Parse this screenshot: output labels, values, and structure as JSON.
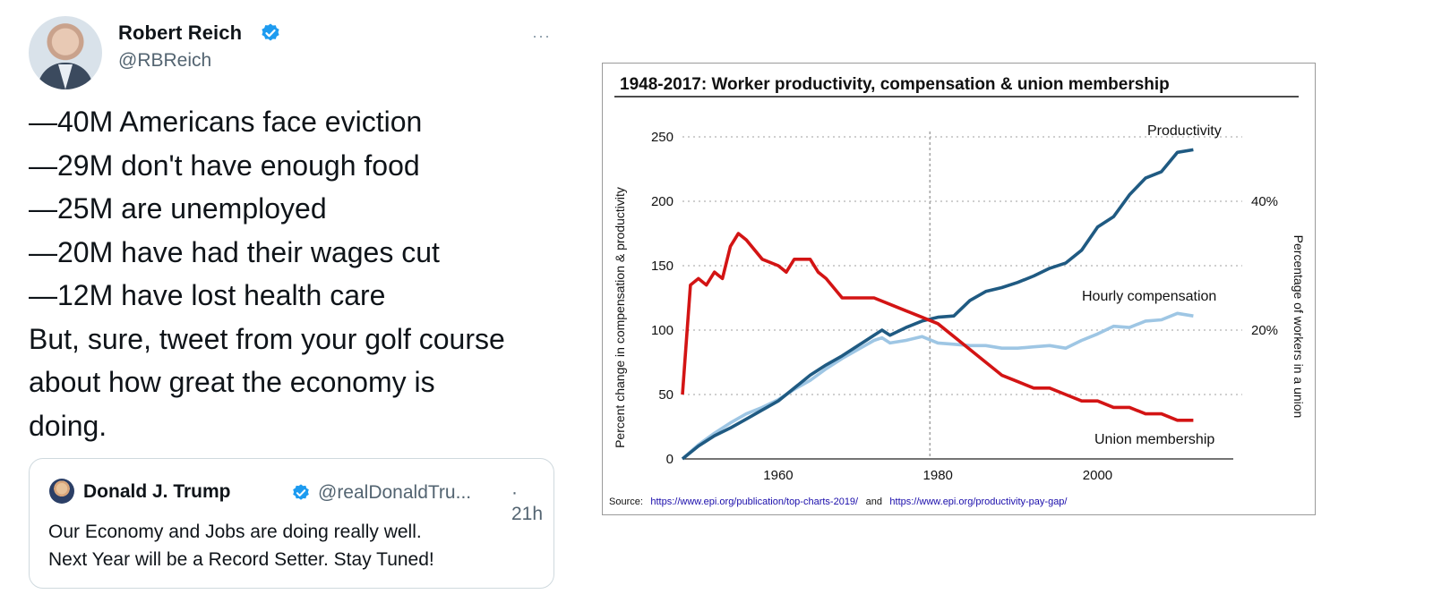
{
  "tweet": {
    "author_name": "Robert Reich",
    "author_handle": "@RBReich",
    "more_label": "···",
    "lines": [
      "—40M Americans face eviction",
      "—29M don't have enough food",
      "—25M are unemployed",
      "—20M have had their wages cut",
      "—12M have lost health care",
      "But, sure, tweet from your golf course",
      "about how great the economy is",
      "doing."
    ],
    "quote": {
      "author_name": "Donald J. Trump",
      "author_handle": "@realDonaldTru...",
      "time": "· 21h",
      "lines": [
        "Our Economy and Jobs are doing really well.",
        "Next Year will be a Record Setter. Stay Tuned!"
      ]
    },
    "colors": {
      "verified": "#1d9bf0",
      "secondary_text": "#536471"
    }
  },
  "chart_data": {
    "type": "line",
    "title": "1948-2017: Worker productivity, compensation & union membership",
    "ylabel": "Percent change in compensation & productivity",
    "ylabel_right": "Percentage of workers in a union",
    "xlim": [
      1948,
      2017
    ],
    "ylim": [
      0,
      250
    ],
    "x_ticks": [
      "1960",
      "1980",
      "2000"
    ],
    "y_ticks": [
      "0",
      "50",
      "100",
      "150",
      "200",
      "250"
    ],
    "right_ticks": [
      "20%",
      "40%"
    ],
    "right_tick_values": [
      20,
      40
    ],
    "right_ylim": [
      0,
      50
    ],
    "reference_line_x": 1979,
    "grid": "horizontal dotted",
    "source_prefix": "Source:",
    "source_link_1": "https://www.epi.org/publication/top-charts-2019/",
    "source_and": "and",
    "source_link_2": "https://www.epi.org/productivity-pay-gap/",
    "series": [
      {
        "name": "Productivity",
        "axis": "left",
        "color": "#1f5a82",
        "x": [
          1948,
          1950,
          1952,
          1954,
          1956,
          1958,
          1960,
          1962,
          1964,
          1966,
          1968,
          1970,
          1972,
          1973,
          1974,
          1976,
          1978,
          1980,
          1982,
          1984,
          1986,
          1988,
          1990,
          1992,
          1994,
          1996,
          1998,
          2000,
          2002,
          2004,
          2006,
          2008,
          2010,
          2012
        ],
        "values": [
          0,
          10,
          18,
          24,
          31,
          38,
          45,
          55,
          65,
          73,
          80,
          88,
          96,
          100,
          96,
          102,
          107,
          110,
          111,
          123,
          130,
          133,
          137,
          142,
          148,
          152,
          162,
          180,
          188,
          205,
          218,
          223,
          238,
          240
        ]
      },
      {
        "name": "Hourly compensation",
        "axis": "left",
        "color": "#9ec6e4",
        "x": [
          1948,
          1950,
          1952,
          1954,
          1956,
          1958,
          1960,
          1962,
          1964,
          1966,
          1968,
          1970,
          1972,
          1973,
          1974,
          1976,
          1978,
          1980,
          1982,
          1984,
          1986,
          1988,
          1990,
          1992,
          1994,
          1996,
          1998,
          2000,
          2002,
          2004,
          2006,
          2008,
          2010,
          2012
        ],
        "values": [
          0,
          11,
          20,
          28,
          35,
          40,
          46,
          54,
          61,
          70,
          78,
          85,
          92,
          94,
          90,
          92,
          95,
          90,
          89,
          88,
          88,
          86,
          86,
          87,
          88,
          86,
          92,
          97,
          103,
          102,
          107,
          108,
          113,
          111
        ]
      },
      {
        "name": "Union membership",
        "axis": "right",
        "color": "#d31414",
        "x": [
          1948,
          1949,
          1950,
          1951,
          1952,
          1953,
          1954,
          1955,
          1956,
          1958,
          1960,
          1961,
          1962,
          1964,
          1965,
          1966,
          1968,
          1970,
          1972,
          1974,
          1976,
          1978,
          1980,
          1982,
          1984,
          1986,
          1988,
          1990,
          1992,
          1994,
          1996,
          1998,
          2000,
          2002,
          2004,
          2006,
          2008,
          2010,
          2012
        ],
        "values": [
          10,
          27,
          28,
          27,
          29,
          28,
          33,
          35,
          34,
          31,
          30,
          29,
          31,
          31,
          29,
          28,
          25,
          25,
          25,
          24,
          23,
          22,
          21,
          19,
          17,
          15,
          13,
          12,
          11,
          11,
          10,
          9,
          9,
          8,
          8,
          7,
          7,
          6,
          6
        ]
      }
    ]
  }
}
